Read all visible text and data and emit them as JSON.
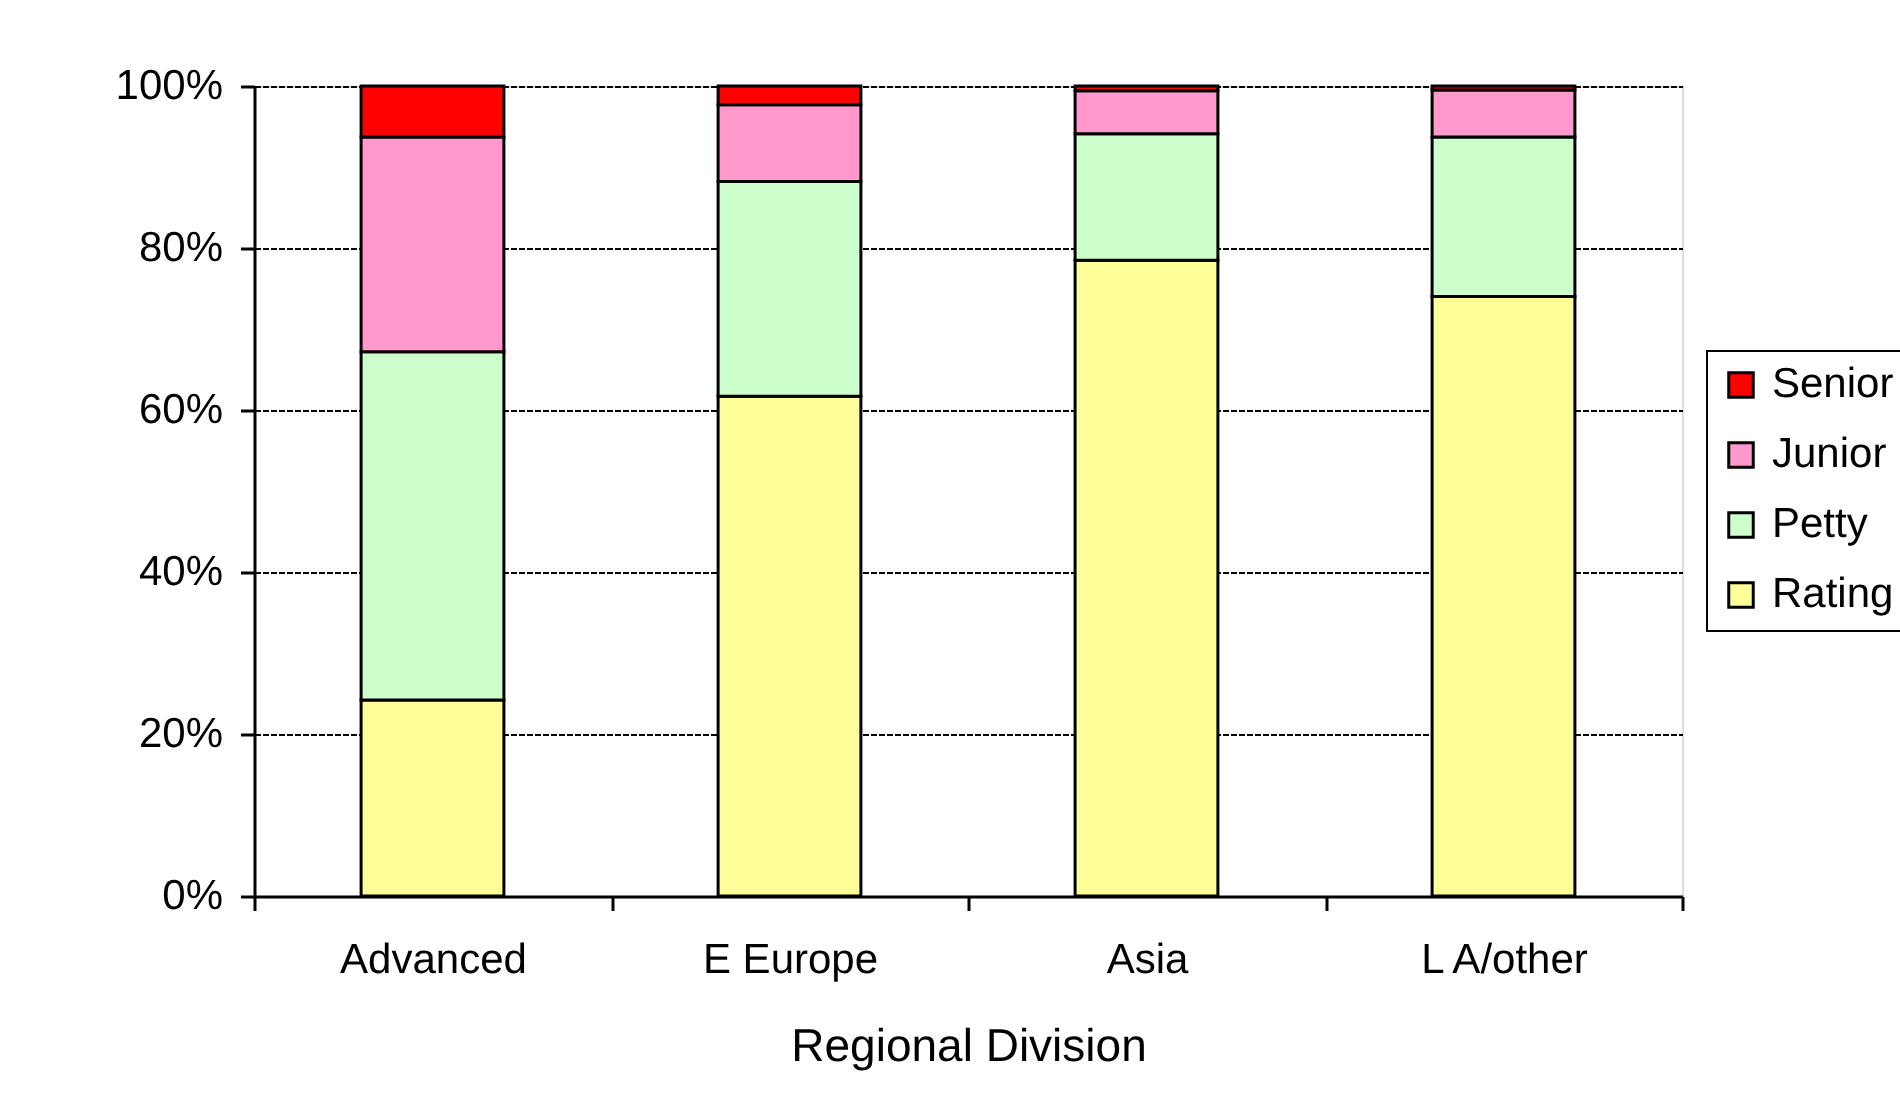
{
  "chart_data": {
    "type": "bar",
    "stacked": true,
    "categories": [
      "Advanced",
      "E Europe",
      "Asia",
      "L A/other"
    ],
    "series": [
      {
        "name": "Rating",
        "color": "#ffff99",
        "values": [
          24.2,
          61.7,
          78.5,
          74.0
        ]
      },
      {
        "name": "Petty",
        "color": "#ccffcc",
        "values": [
          43.0,
          26.5,
          15.6,
          19.7
        ]
      },
      {
        "name": "Junior",
        "color": "#ff99cc",
        "values": [
          26.5,
          9.5,
          5.3,
          5.8
        ]
      },
      {
        "name": "Senior",
        "color": "#ff0000",
        "values": [
          6.3,
          2.3,
          0.6,
          0.5
        ]
      }
    ],
    "xlabel": "Regional Division",
    "ylim": [
      0,
      100
    ],
    "yticks": [
      {
        "value": 0,
        "label": "0%"
      },
      {
        "value": 20,
        "label": "20%"
      },
      {
        "value": 40,
        "label": "40%"
      },
      {
        "value": 60,
        "label": "60%"
      },
      {
        "value": 80,
        "label": "80%"
      },
      {
        "value": 100,
        "label": "100%"
      }
    ],
    "grid": "y",
    "legend": "right"
  }
}
